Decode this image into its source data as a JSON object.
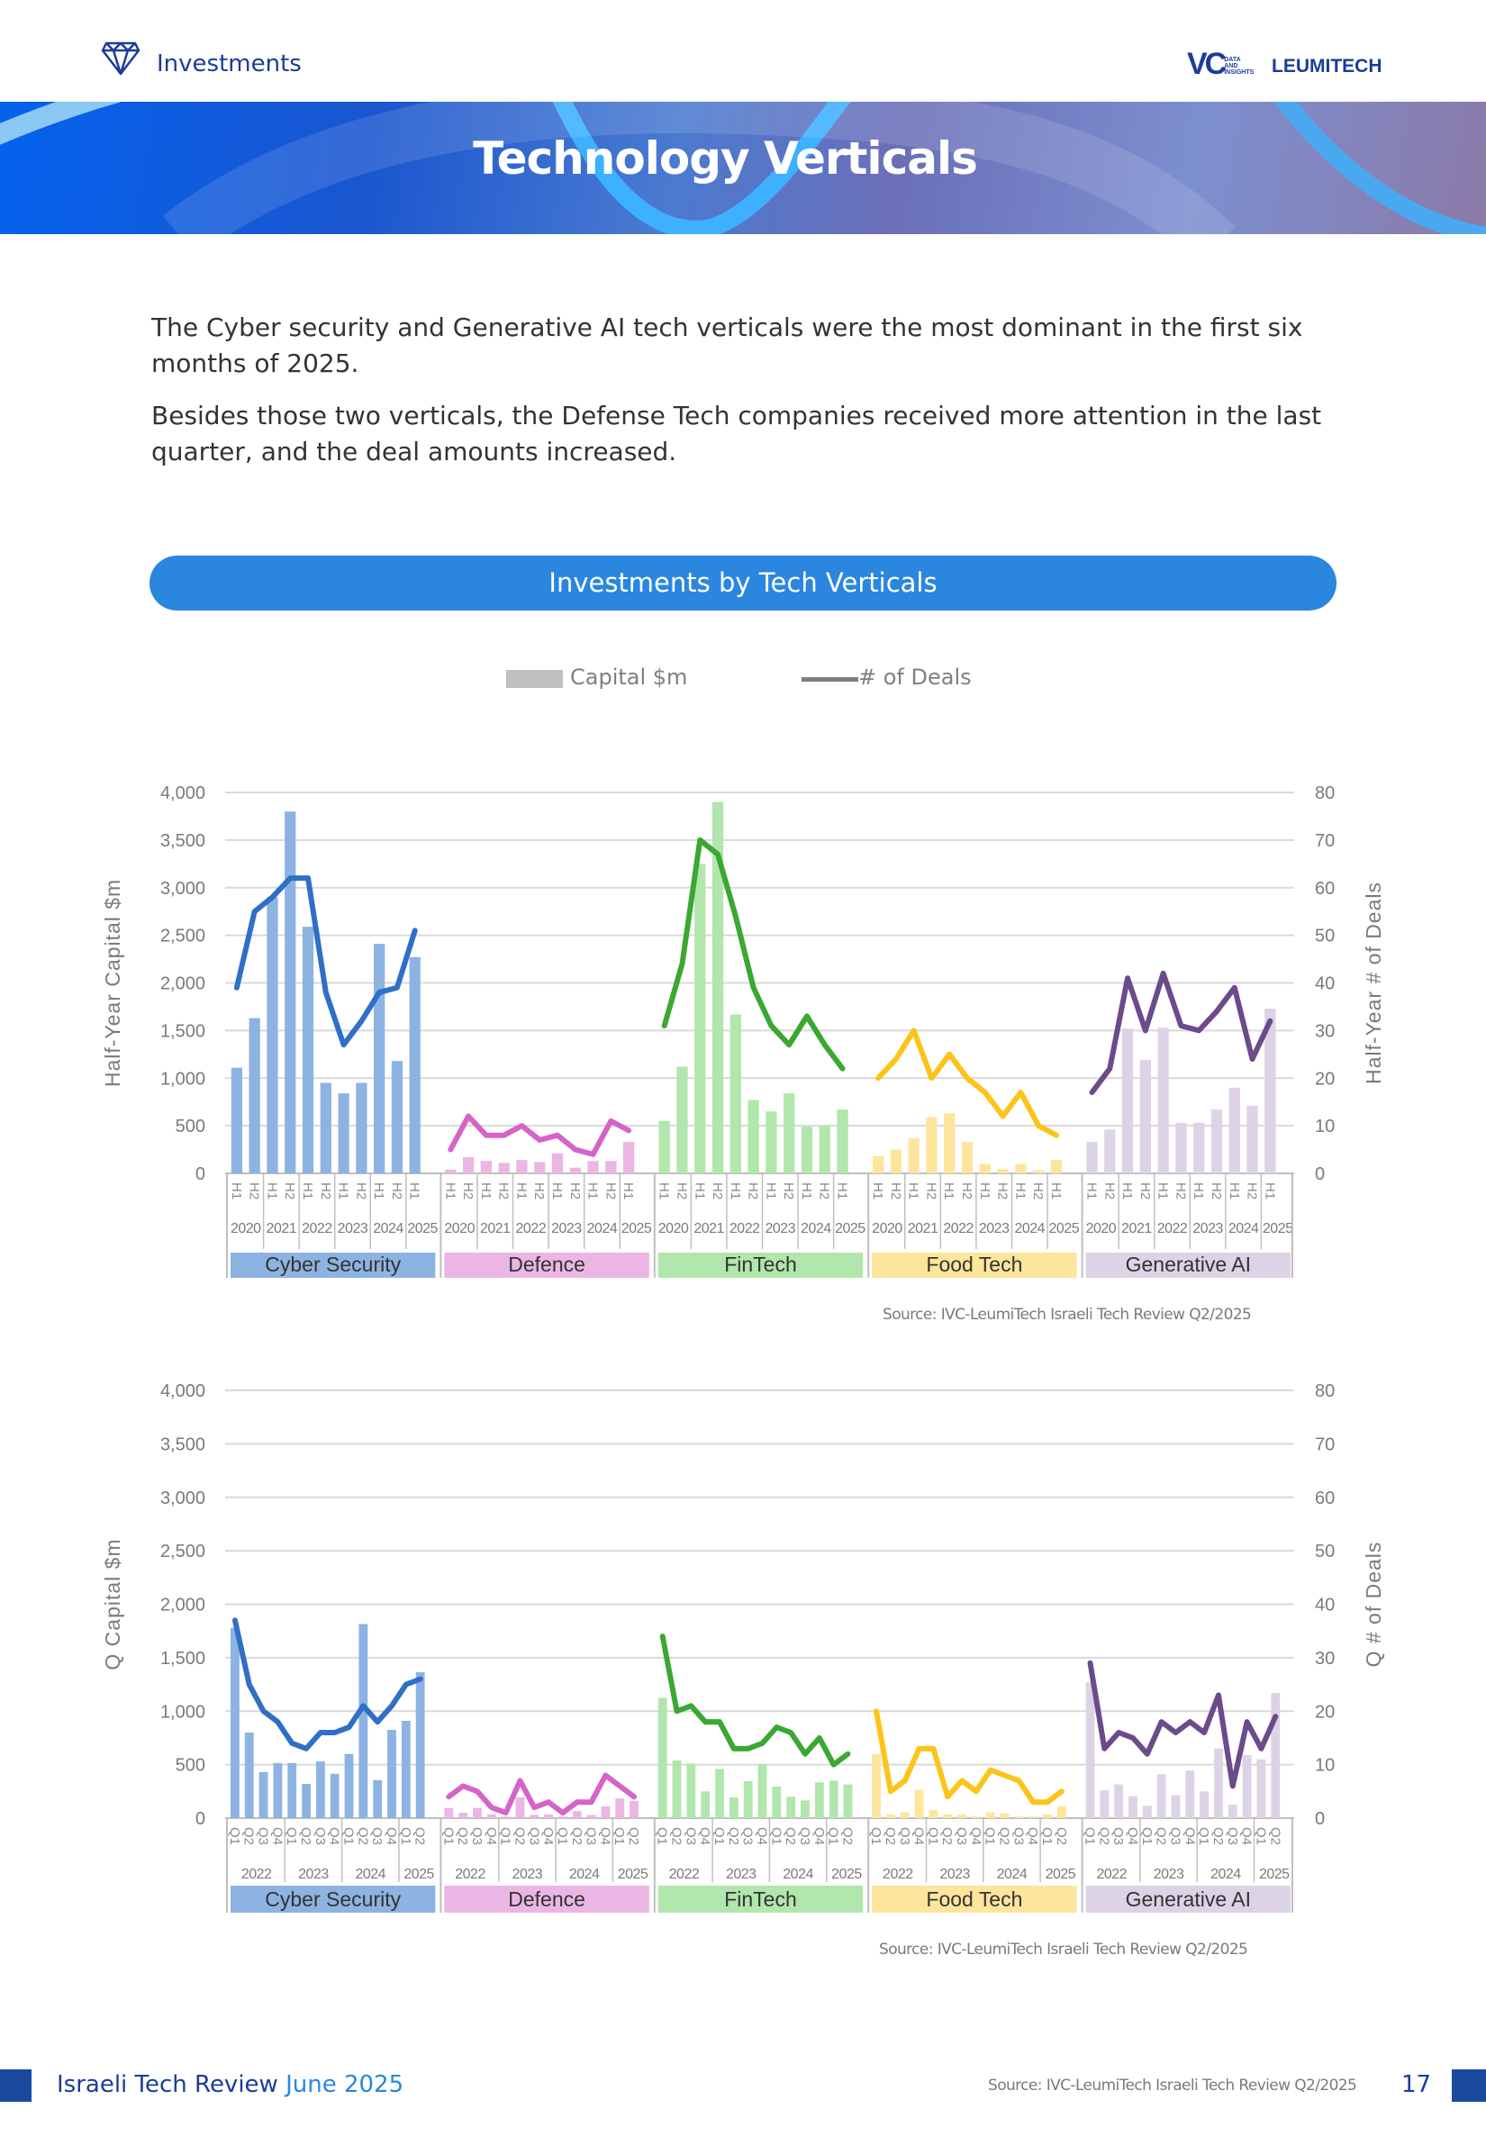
{
  "header": {
    "section_label": "Investments",
    "logo_ivc": "VC",
    "logo_ivc_sub": "DATA AND INSIGHTS",
    "logo_leumitech": "LEUMITECH"
  },
  "banner": {
    "title": "Technology Verticals"
  },
  "intro": {
    "paragraph_1": "The Cyber security and Generative AI tech verticals were the most dominant in the first six months of 2025.",
    "paragraph_2": "Besides those two verticals, the Defense Tech companies received more attention in the last quarter, and the deal amounts increased."
  },
  "section_pill": {
    "label": "Investments by Tech Verticals"
  },
  "legend": {
    "capital": "Capital $m",
    "deals": "# of Deals",
    "capital_color": "#bfbfbf",
    "deals_color": "#7f7f7f"
  },
  "sources": {
    "chart_1": "Source: IVC-LeumiTech Israeli Tech Review Q2/2025",
    "chart_2": "Source: IVC-LeumiTech Israeli Tech Review Q2/2025"
  },
  "footer": {
    "publication": "Israeli Tech Review",
    "date": "June 2025",
    "source": "Source: IVC-LeumiTech Israeli Tech Review Q2/2025",
    "page_number": "17",
    "accent_color": "#1a4aa0"
  },
  "chart_data": [
    {
      "type": "bar+line",
      "ylabel_left": "Half-Year Capital $m",
      "ylabel_right": "Half-Year # of Deals",
      "ylim_left": [
        0,
        4000
      ],
      "ylim_right": [
        0,
        80
      ],
      "yticks_left": [
        "0",
        "500",
        "1,000",
        "1,500",
        "2,000",
        "2,500",
        "3,000",
        "3,500",
        "4,000"
      ],
      "yticks_right": [
        "0",
        "10",
        "20",
        "30",
        "40",
        "50",
        "60",
        "70",
        "80"
      ],
      "grid": true,
      "years": [
        {
          "year": "2020",
          "periods": [
            "H1",
            "H2"
          ]
        },
        {
          "year": "2021",
          "periods": [
            "H1",
            "H2"
          ]
        },
        {
          "year": "2022",
          "periods": [
            "H1",
            "H2"
          ]
        },
        {
          "year": "2023",
          "periods": [
            "H1",
            "H2"
          ]
        },
        {
          "year": "2024",
          "periods": [
            "H1",
            "H2"
          ]
        },
        {
          "year": "2025",
          "periods": [
            "H1"
          ]
        }
      ],
      "groups": [
        {
          "name": "Cyber Security",
          "bar_color": "#8db3e2",
          "line_color": "#2f6fc6",
          "capital": [
            1110,
            1630,
            2900,
            3800,
            2590,
            950,
            840,
            950,
            2410,
            1180,
            2270
          ],
          "deals": [
            39,
            55,
            58,
            62,
            62,
            38,
            27,
            32,
            38,
            39,
            51
          ]
        },
        {
          "name": "Defence",
          "bar_color": "#ebb6e4",
          "line_color": "#d564c8",
          "capital": [
            40,
            170,
            130,
            110,
            140,
            120,
            210,
            60,
            130,
            130,
            330
          ],
          "deals": [
            5,
            12,
            8,
            8,
            10,
            7,
            8,
            5,
            4,
            11,
            9
          ]
        },
        {
          "name": "FinTech",
          "bar_color": "#b1e6ad",
          "line_color": "#3aa832",
          "capital": [
            550,
            1120,
            3250,
            3900,
            1670,
            770,
            650,
            840,
            490,
            500,
            670
          ],
          "deals": [
            31,
            44,
            70,
            67,
            54,
            39,
            31,
            27,
            33,
            27,
            22
          ]
        },
        {
          "name": "Food Tech",
          "bar_color": "#fde59c",
          "line_color": "#fcc419",
          "capital": [
            180,
            250,
            370,
            590,
            630,
            330,
            100,
            45,
            100,
            30,
            140
          ],
          "deals": [
            20,
            24,
            30,
            20,
            25,
            20,
            17,
            12,
            17,
            10,
            8
          ]
        },
        {
          "name": "Generative AI",
          "bar_color": "#dcd3e6",
          "line_color": "#6b4b8a",
          "capital": [
            330,
            460,
            1520,
            1190,
            1530,
            530,
            530,
            670,
            900,
            710,
            1730
          ],
          "deals": [
            17,
            22,
            41,
            30,
            42,
            31,
            30,
            34,
            39,
            24,
            32
          ]
        }
      ]
    },
    {
      "type": "bar+line",
      "ylabel_left": "Q Capital $m",
      "ylabel_right": "Q # of Deals",
      "ylim_left": [
        0,
        4000
      ],
      "ylim_right": [
        0,
        80
      ],
      "yticks_left": [
        "0",
        "500",
        "1,000",
        "1,500",
        "2,000",
        "2,500",
        "3,000",
        "3,500",
        "4,000"
      ],
      "yticks_right": [
        "0",
        "10",
        "20",
        "30",
        "40",
        "50",
        "60",
        "70",
        "80"
      ],
      "grid": true,
      "years": [
        {
          "year": "2022",
          "periods": [
            "Q1",
            "Q2",
            "Q3",
            "Q4"
          ]
        },
        {
          "year": "2023",
          "periods": [
            "Q1",
            "Q2",
            "Q3",
            "Q4"
          ]
        },
        {
          "year": "2024",
          "periods": [
            "Q1",
            "Q2",
            "Q3",
            "Q4"
          ]
        },
        {
          "year": "2025",
          "periods": [
            "Q1",
            "Q2"
          ]
        }
      ],
      "groups": [
        {
          "name": "Cyber Security",
          "bar_color": "#8db3e2",
          "line_color": "#2f6fc6",
          "capital": [
            1780,
            800,
            430,
            515,
            515,
            320,
            530,
            415,
            600,
            1815,
            355,
            825,
            910,
            1365
          ],
          "deals": [
            37,
            25,
            20,
            18,
            14,
            13,
            16,
            16,
            17,
            21,
            18,
            21,
            25,
            26
          ]
        },
        {
          "name": "Defence",
          "bar_color": "#ebb6e4",
          "line_color": "#d564c8",
          "capital": [
            95,
            50,
            95,
            35,
            15,
            195,
            30,
            35,
            15,
            65,
            30,
            110,
            185,
            160
          ],
          "deals": [
            4,
            6,
            5,
            2,
            1,
            7,
            2,
            3,
            1,
            3,
            3,
            8,
            6,
            4
          ]
        },
        {
          "name": "FinTech",
          "bar_color": "#b1e6ad",
          "line_color": "#3aa832",
          "capital": [
            1125,
            540,
            510,
            250,
            460,
            195,
            345,
            505,
            295,
            200,
            165,
            335,
            350,
            315
          ],
          "deals": [
            34,
            20,
            21,
            18,
            18,
            13,
            13,
            14,
            17,
            16,
            12,
            15,
            10,
            12
          ]
        },
        {
          "name": "Food Tech",
          "bar_color": "#fde59c",
          "line_color": "#fcc419",
          "capital": [
            600,
            35,
            55,
            265,
            75,
            35,
            35,
            15,
            55,
            45,
            15,
            15,
            35,
            110
          ],
          "deals": [
            20,
            5,
            7,
            13,
            13,
            4,
            7,
            5,
            9,
            8,
            7,
            3,
            3,
            5
          ]
        },
        {
          "name": "Generative AI",
          "bar_color": "#dcd3e6",
          "line_color": "#6b4b8a",
          "capital": [
            1270,
            260,
            315,
            205,
            115,
            410,
            215,
            445,
            250,
            650,
            125,
            590,
            550,
            1170
          ],
          "deals": [
            29,
            13,
            16,
            15,
            12,
            18,
            16,
            18,
            16,
            23,
            6,
            18,
            13,
            19
          ]
        }
      ]
    }
  ]
}
